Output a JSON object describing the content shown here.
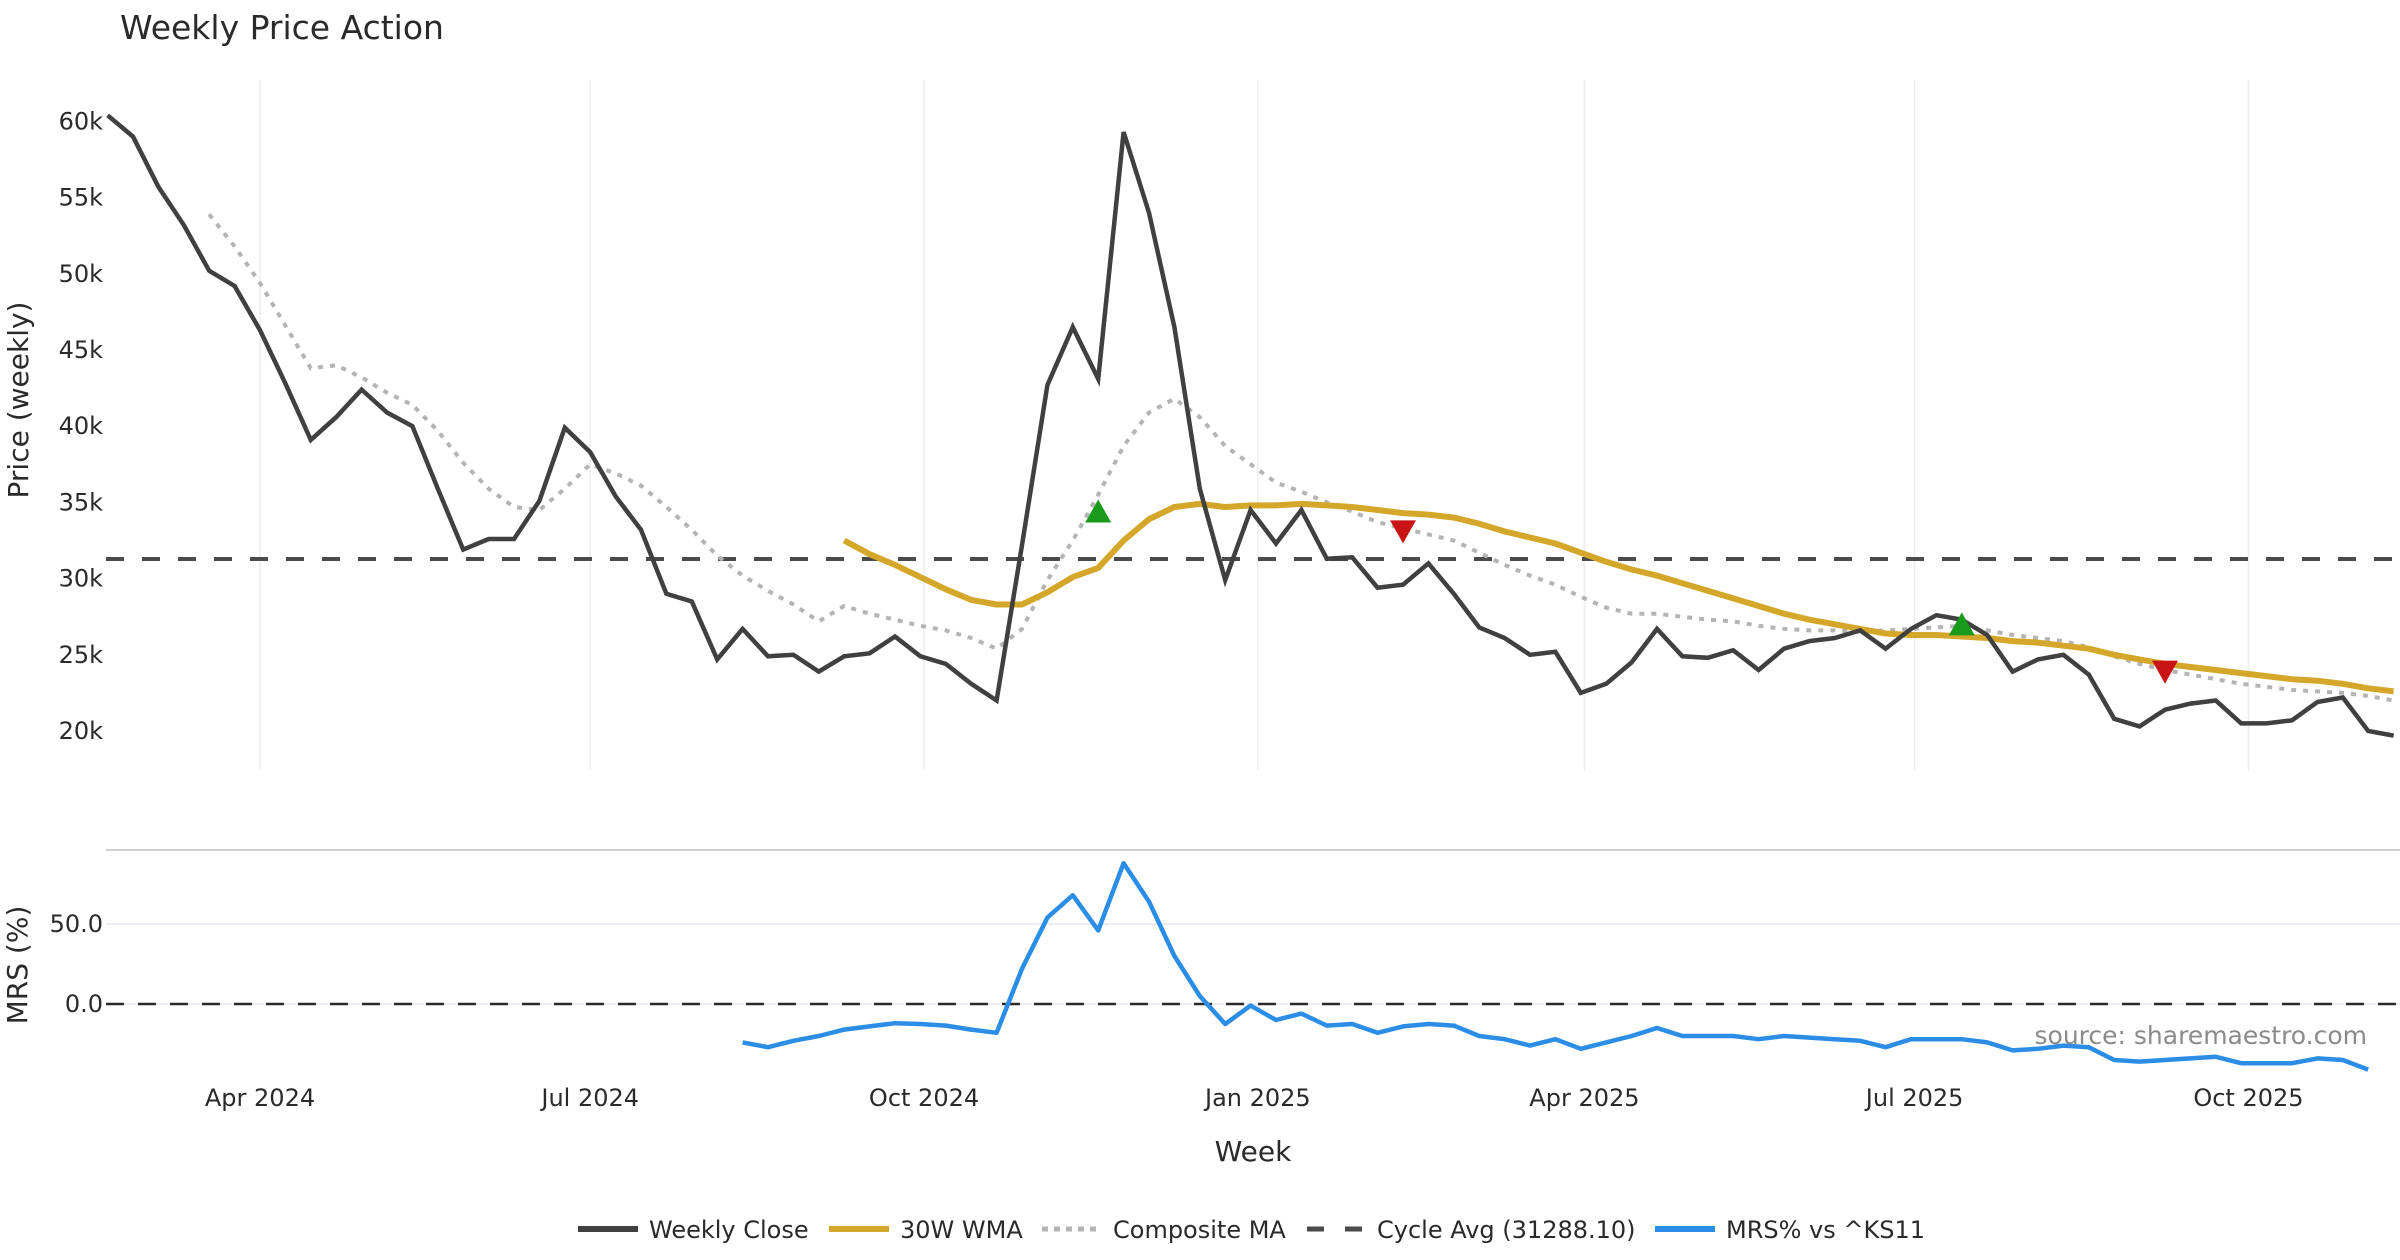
{
  "chart_data": {
    "type": "line",
    "title": "Weekly Price Action",
    "xlabel": "Week",
    "start_date": "2024-02-19",
    "x_unit": "week",
    "x_ticks": [
      {
        "label": "Apr 2024",
        "date": "2024-04-01"
      },
      {
        "label": "Jul 2024",
        "date": "2024-07-01"
      },
      {
        "label": "Oct 2024",
        "date": "2024-10-01"
      },
      {
        "label": "Jan 2025",
        "date": "2025-01-01"
      },
      {
        "label": "Apr 2025",
        "date": "2025-04-01"
      },
      {
        "label": "Jul 2025",
        "date": "2025-07-01"
      },
      {
        "label": "Oct 2025",
        "date": "2025-10-01"
      }
    ],
    "price_panel": {
      "ylabel": "Price (weekly)",
      "ylim": [
        17600,
        61500
      ],
      "y_ticks": [
        {
          "value": 60000,
          "label": "60k"
        },
        {
          "value": 55000,
          "label": "55k"
        },
        {
          "value": 50000,
          "label": "50k"
        },
        {
          "value": 45000,
          "label": "45k"
        },
        {
          "value": 40000,
          "label": "40k"
        },
        {
          "value": 35000,
          "label": "35k"
        },
        {
          "value": 30000,
          "label": "30k"
        },
        {
          "value": 25000,
          "label": "25k"
        },
        {
          "value": 20000,
          "label": "20k"
        }
      ],
      "series": [
        {
          "name": "Weekly Close",
          "color": "#404040",
          "style": "solid",
          "start_index": 0,
          "values": [
            60400,
            59000,
            55700,
            53200,
            50200,
            49200,
            46300,
            42800,
            39100,
            40600,
            42400,
            40900,
            40000,
            35900,
            31900,
            32600,
            32600,
            35100,
            39900,
            38300,
            35400,
            33200,
            29000,
            28500,
            24700,
            26700,
            24900,
            25000,
            23900,
            24900,
            25100,
            26200,
            24900,
            24400,
            23100,
            22000,
            32200,
            42700,
            46500,
            43100,
            59300,
            54000,
            46500,
            35900,
            29900,
            34500,
            32300,
            34500,
            31300,
            31400,
            29400,
            29600,
            31000,
            29000,
            26800,
            26100,
            25000,
            25200,
            22500,
            23100,
            24500,
            26700,
            24900,
            24800,
            25300,
            24000,
            25400,
            25900,
            26100,
            26600,
            25400,
            26700,
            27600,
            27300,
            26300,
            23900,
            24700,
            25000,
            23700,
            20800,
            20300,
            21400,
            21800,
            22000,
            20500,
            20500,
            20700,
            21900,
            22200,
            20000,
            19700
          ]
        },
        {
          "name": "30W WMA",
          "color": "#d4a62a",
          "style": "solid",
          "start_index": 29,
          "values": [
            32500,
            31600,
            30900,
            30100,
            29300,
            28600,
            28300,
            28300,
            29100,
            30100,
            30700,
            32500,
            33900,
            34700,
            34900,
            34700,
            34800,
            34800,
            34900,
            34800,
            34700,
            34500,
            34300,
            34200,
            34000,
            33600,
            33100,
            32700,
            32300,
            31700,
            31100,
            30600,
            30200,
            29700,
            29200,
            28700,
            28200,
            27700,
            27300,
            27000,
            26700,
            26400,
            26300,
            26300,
            26200,
            26100,
            25900,
            25800,
            25600,
            25400,
            25000,
            24700,
            24400,
            24200,
            24000,
            23800,
            23600,
            23400,
            23300,
            23100,
            22800,
            22600
          ]
        },
        {
          "name": "Composite MA",
          "color": "#b4b4b4",
          "style": "dotted",
          "start_index": 4,
          "values": [
            53900,
            51800,
            49400,
            46600,
            43800,
            44000,
            43200,
            42200,
            41400,
            39700,
            37600,
            35900,
            34700,
            34500,
            35900,
            37500,
            36900,
            36100,
            34700,
            33200,
            31500,
            30200,
            29200,
            28300,
            27200,
            28200,
            27700,
            27300,
            26900,
            26600,
            26100,
            25400,
            26700,
            29900,
            32500,
            35500,
            38700,
            40900,
            41800,
            40600,
            38700,
            37500,
            36300,
            35700,
            35000,
            34400,
            33700,
            33300,
            32900,
            32500,
            31700,
            30900,
            30200,
            29600,
            28800,
            28100,
            27700,
            27700,
            27500,
            27300,
            27200,
            26900,
            26700,
            26600,
            26600,
            26500,
            26600,
            26700,
            26800,
            26900,
            26600,
            26300,
            26100,
            25900,
            25500,
            24900,
            24400,
            24000,
            23700,
            23400,
            23100,
            22900,
            22700,
            22600,
            22500,
            22300,
            22000
          ]
        },
        {
          "name": "Cycle Avg (31288.10)",
          "color": "#4a4a4a",
          "style": "dashed",
          "value": 31288.1
        }
      ],
      "signals": [
        {
          "type": "buy",
          "index": 39,
          "value": 34400,
          "color": "#1a9a1a"
        },
        {
          "type": "sell",
          "index": 51,
          "value": 33100,
          "color": "#c81414"
        },
        {
          "type": "buy",
          "index": 73,
          "value": 27000,
          "color": "#1a9a1a"
        },
        {
          "type": "sell",
          "index": 81,
          "value": 23900,
          "color": "#c81414"
        }
      ]
    },
    "mrs_panel": {
      "ylabel": "MRS (%)",
      "ylim": [
        -45,
        96
      ],
      "y_ticks": [
        {
          "value": 50,
          "label": "50.0"
        },
        {
          "value": 0,
          "label": "0.0"
        }
      ],
      "zero_line": 0,
      "series": [
        {
          "name": "MRS% vs ^KS11",
          "color": "#2b8de6",
          "start_index": 25,
          "values": [
            -24,
            -27,
            -23,
            -20,
            -16,
            -14,
            -12,
            -12.5,
            -13.5,
            -16,
            -18,
            22,
            54,
            68,
            46,
            88,
            64,
            30,
            5,
            -12.5,
            -1,
            -10,
            -6,
            -13.5,
            -12.5,
            -18,
            -14,
            -12.5,
            -13.5,
            -20,
            -22,
            -26,
            -22,
            -28,
            -24,
            -20,
            -15,
            -20,
            -20,
            -20,
            -22,
            -20,
            -21,
            -22,
            -23,
            -27,
            -22,
            -22,
            -22,
            -24,
            -29,
            -28,
            -26,
            -27,
            -35,
            -36,
            -35,
            -34,
            -33,
            -37,
            -37,
            -37,
            -34,
            -35,
            -41
          ]
        }
      ]
    },
    "legend": {
      "position": "bottom-center",
      "entries": [
        {
          "label": "Weekly Close",
          "color": "#404040",
          "style": "solid"
        },
        {
          "label": "30W WMA",
          "color": "#d4a62a",
          "style": "solid"
        },
        {
          "label": "Composite MA",
          "color": "#b4b4b4",
          "style": "dotted"
        },
        {
          "label": "Cycle Avg (31288.10)",
          "color": "#4a4a4a",
          "style": "dashed"
        },
        {
          "label": "MRS% vs ^KS11",
          "color": "#2b8de6",
          "style": "solid"
        }
      ]
    },
    "annotation": "source: sharemaestro.com",
    "grid": true
  }
}
